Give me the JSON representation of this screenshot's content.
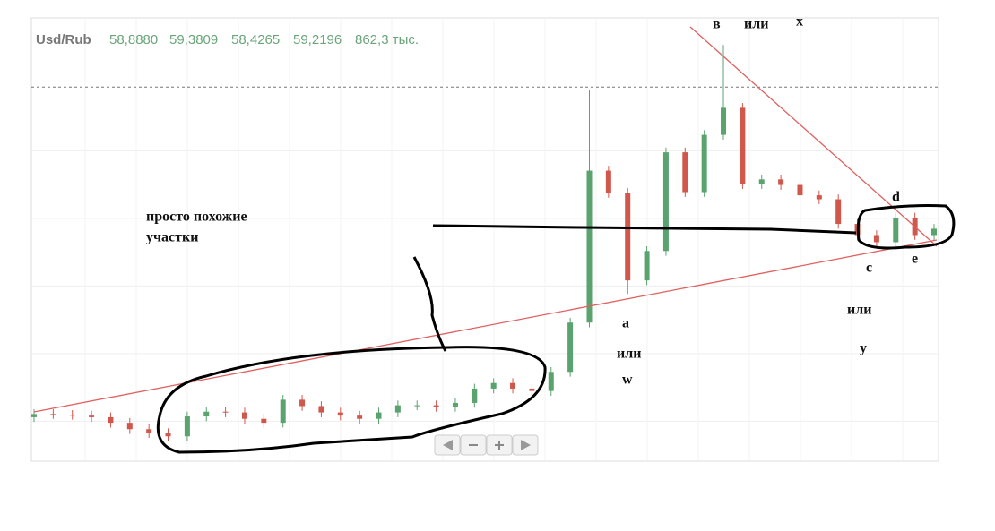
{
  "header": {
    "symbol": "Usd/Rub",
    "open": "58,8880",
    "high": "59,3809",
    "low": "58,4265",
    "close": "59,2196",
    "volume": "862,3 тыс."
  },
  "chart_data": {
    "type": "candlestick",
    "ylim": [
      30.2,
      85.7
    ],
    "grid_lines": [
      35,
      43.5,
      52,
      60.5,
      69
    ],
    "level": 77,
    "colors": {
      "up": "#5aa36e",
      "down": "#d0574c"
    },
    "open": [
      35.5,
      35.9,
      35.8,
      35.7,
      35.5,
      34.8,
      34.0,
      33.5,
      33.1,
      35.6,
      36.2,
      36.1,
      35.3,
      34.8,
      37.7,
      36.9,
      36.1,
      35.7,
      35.3,
      36.1,
      37.0,
      37.0,
      36.8,
      37.3,
      39.1,
      39.8,
      39.1,
      38.8,
      41.2,
      47.4,
      66.5,
      63.7,
      52.7,
      56.4,
      68.8,
      63.8,
      71.0,
      74.4,
      64.8,
      65.4,
      64.7,
      63.4,
      62.9,
      59.8,
      58.4,
      57.5,
      60.6,
      58.4
    ],
    "high": [
      36.5,
      36.5,
      36.4,
      36.3,
      36.1,
      35.4,
      34.6,
      34.1,
      36.2,
      36.8,
      36.8,
      36.7,
      35.9,
      38.3,
      38.3,
      37.5,
      36.7,
      36.3,
      36.7,
      37.6,
      37.6,
      37.6,
      37.9,
      39.7,
      40.4,
      40.4,
      39.7,
      41.8,
      48.0,
      76.7,
      67.1,
      64.3,
      57.0,
      69.4,
      69.4,
      71.6,
      82.3,
      75.0,
      66.0,
      66.0,
      65.3,
      64.0,
      63.5,
      60.4,
      59.0,
      61.2,
      61.2,
      59.8
    ],
    "low": [
      34.9,
      35.3,
      35.2,
      34.9,
      34.2,
      33.4,
      32.9,
      32.5,
      32.5,
      35.0,
      35.5,
      34.7,
      34.2,
      34.2,
      36.3,
      35.5,
      35.1,
      34.7,
      34.7,
      35.5,
      36.4,
      36.2,
      36.2,
      36.7,
      38.5,
      38.5,
      38.2,
      38.2,
      40.6,
      46.8,
      63.1,
      51.0,
      52.1,
      55.8,
      63.2,
      63.2,
      70.4,
      64.2,
      64.2,
      64.1,
      62.8,
      62.3,
      59.2,
      57.8,
      56.9,
      56.9,
      57.8,
      57.8
    ],
    "close": [
      35.9,
      35.8,
      35.7,
      35.5,
      34.8,
      34.0,
      33.5,
      33.1,
      35.6,
      36.2,
      36.1,
      35.3,
      34.8,
      37.7,
      36.9,
      36.1,
      35.7,
      35.3,
      36.1,
      37.0,
      37.0,
      36.8,
      37.3,
      39.1,
      39.8,
      39.1,
      38.8,
      41.2,
      47.4,
      66.5,
      63.7,
      52.7,
      56.4,
      68.8,
      63.8,
      71.0,
      74.4,
      64.8,
      65.4,
      64.7,
      63.4,
      62.9,
      59.8,
      58.4,
      57.5,
      60.6,
      58.4,
      59.2
    ]
  },
  "annotations": [
    "в",
    "или",
    "x",
    "просто похожие",
    "участки",
    "a",
    "или",
    "w",
    "d",
    "c",
    "e",
    "или",
    "y"
  ]
}
